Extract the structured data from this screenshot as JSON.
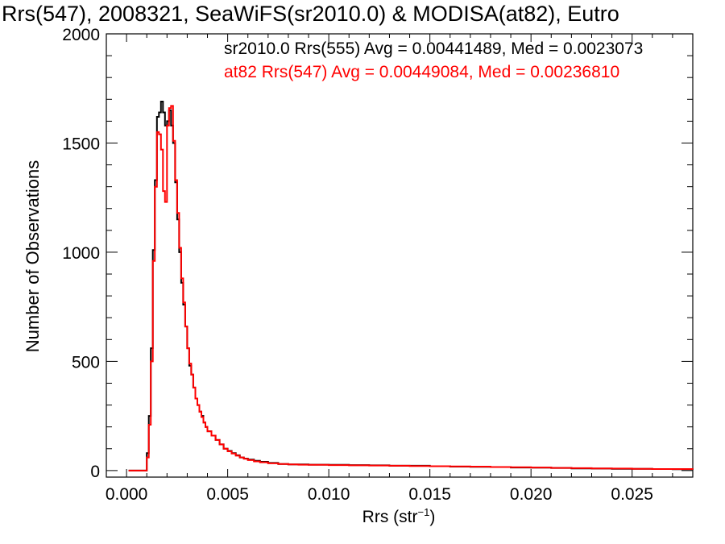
{
  "chart_data": {
    "type": "step-histogram",
    "title": "Rrs(547), 2008321, SeaWiFS(sr2010.0) & MODISA(at82), Eutro",
    "xlabel_text": "Rrs (str",
    "xlabel_sup": "−1",
    "xlabel_close": ")",
    "ylabel": "Number of Observations",
    "xlim": [
      -0.001,
      0.028
    ],
    "ylim": [
      -30,
      2000
    ],
    "x_ticks": [
      0.0,
      0.005,
      0.01,
      0.015,
      0.02,
      0.025
    ],
    "x_tick_labels": [
      "0.000",
      "0.005",
      "0.010",
      "0.015",
      "0.020",
      "0.025"
    ],
    "y_ticks": [
      0,
      500,
      1000,
      1500,
      2000
    ],
    "y_tick_labels": [
      "0",
      "500",
      "1000",
      "1500",
      "2000"
    ],
    "legend_position": "top-right",
    "series": [
      {
        "name": "sr2010.0 Rrs(555) Avg = 0.00441489, Med = 0.0023073",
        "color": "#000000",
        "points": [
          [
            0.0001,
            0
          ],
          [
            0.0009,
            0
          ],
          [
            0.001,
            80
          ],
          [
            0.0011,
            250
          ],
          [
            0.0012,
            560
          ],
          [
            0.0013,
            1010
          ],
          [
            0.0014,
            1330
          ],
          [
            0.0015,
            1620
          ],
          [
            0.0016,
            1640
          ],
          [
            0.0017,
            1690
          ],
          [
            0.0018,
            1640
          ],
          [
            0.0019,
            1580
          ],
          [
            0.002,
            1600
          ],
          [
            0.0021,
            1650
          ],
          [
            0.0022,
            1580
          ],
          [
            0.0023,
            1500
          ],
          [
            0.0024,
            1320
          ],
          [
            0.0025,
            1150
          ],
          [
            0.0026,
            1000
          ],
          [
            0.0027,
            860
          ],
          [
            0.0028,
            760
          ],
          [
            0.0029,
            660
          ],
          [
            0.003,
            560
          ],
          [
            0.0031,
            480
          ],
          [
            0.0032,
            440
          ],
          [
            0.0033,
            380
          ],
          [
            0.0034,
            330
          ],
          [
            0.0035,
            300
          ],
          [
            0.0036,
            270
          ],
          [
            0.0037,
            250
          ],
          [
            0.0038,
            220
          ],
          [
            0.0039,
            200
          ],
          [
            0.004,
            180
          ],
          [
            0.0042,
            160
          ],
          [
            0.0044,
            140
          ],
          [
            0.0046,
            120
          ],
          [
            0.0048,
            100
          ],
          [
            0.005,
            90
          ],
          [
            0.0052,
            80
          ],
          [
            0.0054,
            70
          ],
          [
            0.0056,
            60
          ],
          [
            0.0058,
            55
          ],
          [
            0.006,
            50
          ],
          [
            0.0063,
            45
          ],
          [
            0.0066,
            40
          ],
          [
            0.007,
            35
          ],
          [
            0.0075,
            30
          ],
          [
            0.008,
            28
          ],
          [
            0.0085,
            28
          ],
          [
            0.009,
            27
          ],
          [
            0.01,
            26
          ],
          [
            0.011,
            25
          ],
          [
            0.012,
            24
          ],
          [
            0.013,
            22
          ],
          [
            0.014,
            22
          ],
          [
            0.015,
            20
          ],
          [
            0.016,
            18
          ],
          [
            0.017,
            17
          ],
          [
            0.018,
            16
          ],
          [
            0.019,
            14
          ],
          [
            0.02,
            13
          ],
          [
            0.021,
            12
          ],
          [
            0.022,
            10
          ],
          [
            0.023,
            9
          ],
          [
            0.024,
            8
          ],
          [
            0.025,
            8
          ],
          [
            0.026,
            7
          ],
          [
            0.027,
            6
          ],
          [
            0.028,
            5
          ]
        ]
      },
      {
        "name": "at82 Rrs(547) Avg = 0.00449084, Med = 0.00236810",
        "color": "#ff0000",
        "points": [
          [
            0.0001,
            0
          ],
          [
            0.0009,
            0
          ],
          [
            0.001,
            60
          ],
          [
            0.0011,
            210
          ],
          [
            0.0012,
            500
          ],
          [
            0.0013,
            960
          ],
          [
            0.0014,
            1300
          ],
          [
            0.0015,
            1550
          ],
          [
            0.0016,
            1540
          ],
          [
            0.0017,
            1470
          ],
          [
            0.0018,
            1280
          ],
          [
            0.0019,
            1230
          ],
          [
            0.002,
            1580
          ],
          [
            0.0021,
            1660
          ],
          [
            0.0022,
            1670
          ],
          [
            0.0023,
            1510
          ],
          [
            0.0024,
            1330
          ],
          [
            0.0025,
            1180
          ],
          [
            0.0026,
            1020
          ],
          [
            0.0027,
            880
          ],
          [
            0.0028,
            770
          ],
          [
            0.0029,
            660
          ],
          [
            0.003,
            560
          ],
          [
            0.0031,
            490
          ],
          [
            0.0032,
            440
          ],
          [
            0.0033,
            380
          ],
          [
            0.0034,
            330
          ],
          [
            0.0035,
            300
          ],
          [
            0.0036,
            270
          ],
          [
            0.0037,
            245
          ],
          [
            0.0038,
            220
          ],
          [
            0.0039,
            200
          ],
          [
            0.004,
            180
          ],
          [
            0.0042,
            160
          ],
          [
            0.0044,
            140
          ],
          [
            0.0046,
            120
          ],
          [
            0.0048,
            100
          ],
          [
            0.005,
            88
          ],
          [
            0.0052,
            78
          ],
          [
            0.0054,
            68
          ],
          [
            0.0056,
            60
          ],
          [
            0.0058,
            54
          ],
          [
            0.006,
            48
          ],
          [
            0.0063,
            42
          ],
          [
            0.0066,
            38
          ],
          [
            0.007,
            33
          ],
          [
            0.0075,
            30
          ],
          [
            0.008,
            28
          ],
          [
            0.0085,
            27
          ],
          [
            0.009,
            26
          ],
          [
            0.01,
            25
          ],
          [
            0.011,
            24
          ],
          [
            0.012,
            23
          ],
          [
            0.013,
            22
          ],
          [
            0.014,
            21
          ],
          [
            0.015,
            20
          ],
          [
            0.016,
            19
          ],
          [
            0.017,
            18
          ],
          [
            0.018,
            16
          ],
          [
            0.019,
            15
          ],
          [
            0.02,
            14
          ],
          [
            0.021,
            12
          ],
          [
            0.022,
            11
          ],
          [
            0.023,
            10
          ],
          [
            0.024,
            9
          ],
          [
            0.025,
            8
          ],
          [
            0.026,
            7
          ],
          [
            0.027,
            7
          ],
          [
            0.028,
            6
          ]
        ]
      }
    ]
  }
}
